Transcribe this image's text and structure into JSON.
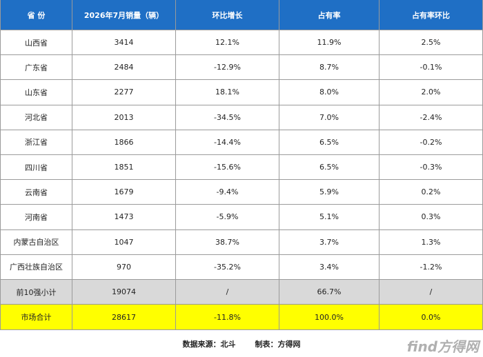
{
  "table": {
    "header": [
      "省 份",
      "2026年7月销量（辆）",
      "环比增长",
      "占有率",
      "占有率环比"
    ],
    "rows": [
      [
        "山西省",
        "3414",
        "12.1%",
        "11.9%",
        "2.5%"
      ],
      [
        "广东省",
        "2484",
        "-12.9%",
        "8.7%",
        "-0.1%"
      ],
      [
        "山东省",
        "2277",
        "18.1%",
        "8.0%",
        "2.0%"
      ],
      [
        "河北省",
        "2013",
        "-34.5%",
        "7.0%",
        "-2.4%"
      ],
      [
        "浙江省",
        "1866",
        "-14.4%",
        "6.5%",
        "-0.2%"
      ],
      [
        "四川省",
        "1851",
        "-15.6%",
        "6.5%",
        "-0.3%"
      ],
      [
        "云南省",
        "1679",
        "-9.4%",
        "5.9%",
        "0.2%"
      ],
      [
        "河南省",
        "1473",
        "-5.9%",
        "5.1%",
        "0.3%"
      ],
      [
        "内蒙古自治区",
        "1047",
        "38.7%",
        "3.7%",
        "1.3%"
      ],
      [
        "广西壮族自治区",
        "970",
        "-35.2%",
        "3.4%",
        "-1.2%"
      ]
    ],
    "subtotal": [
      "前10强小计",
      "19074",
      "/",
      "66.7%",
      "/"
    ],
    "total": [
      "市场合计",
      "28617",
      "-11.8%",
      "100.0%",
      "0.0%"
    ]
  },
  "footer": {
    "source": "数据来源：北斗",
    "maker": "制表：方得网"
  },
  "watermark": "find方得网"
}
